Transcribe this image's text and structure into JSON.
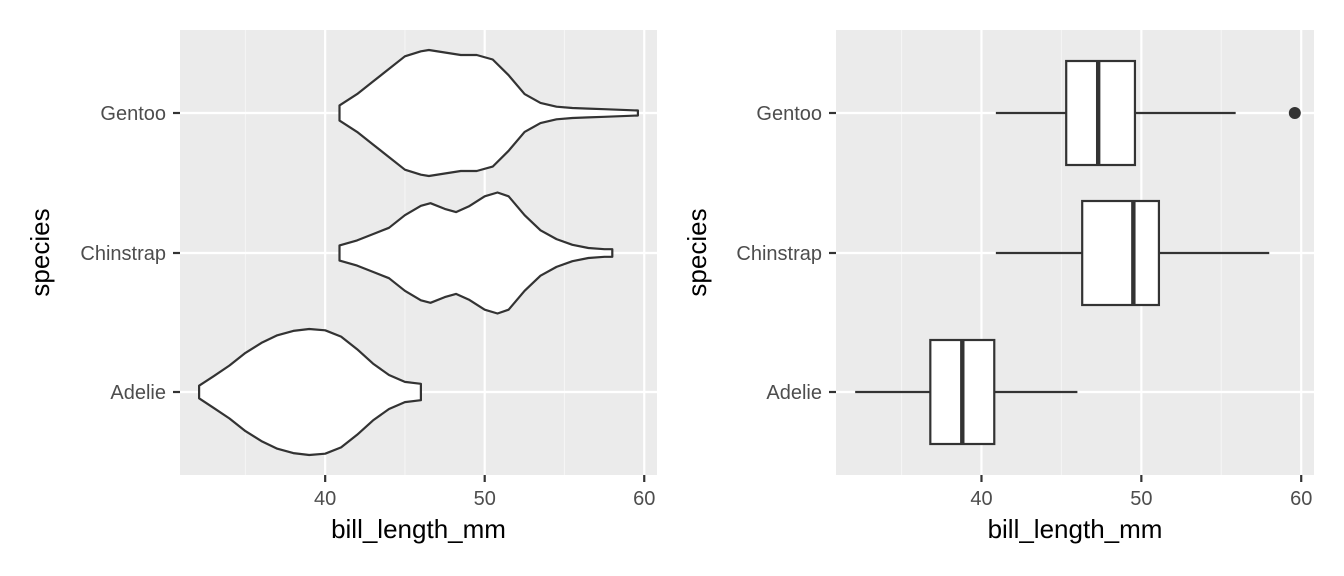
{
  "colors": {
    "panel_background": "#EBEBEB",
    "grid_major": "#FFFFFF",
    "grid_minor": "#F5F5F5",
    "outline": "#333333",
    "fill": "#FFFFFF",
    "tick_text": "#4D4D4D",
    "axis_title": "#000000"
  },
  "chart_data": [
    {
      "type": "violin",
      "orientation": "horizontal",
      "title": "",
      "xlabel": "bill_length_mm",
      "ylabel": "species",
      "xlim": [
        30.9,
        60.8
      ],
      "x_ticks": [
        40,
        50,
        60
      ],
      "x_minor_ticks": [
        35,
        45,
        55
      ],
      "categories": [
        "Adelie",
        "Chinstrap",
        "Gentoo"
      ],
      "grid": true,
      "violins": [
        {
          "name": "Adelie",
          "range": [
            32.1,
            46.0
          ],
          "profile": [
            [
              32.1,
              0.1
            ],
            [
              33,
              0.25
            ],
            [
              34,
              0.42
            ],
            [
              35,
              0.62
            ],
            [
              36,
              0.78
            ],
            [
              37,
              0.9
            ],
            [
              38,
              0.97
            ],
            [
              39,
              1.0
            ],
            [
              40,
              0.98
            ],
            [
              41,
              0.88
            ],
            [
              42,
              0.68
            ],
            [
              43,
              0.45
            ],
            [
              44,
              0.27
            ],
            [
              45,
              0.16
            ],
            [
              46,
              0.13
            ]
          ]
        },
        {
          "name": "Chinstrap",
          "range": [
            40.9,
            58.0
          ],
          "profile": [
            [
              40.9,
              0.12
            ],
            [
              42,
              0.2
            ],
            [
              43,
              0.3
            ],
            [
              44,
              0.4
            ],
            [
              45,
              0.6
            ],
            [
              46,
              0.75
            ],
            [
              46.6,
              0.79
            ],
            [
              47.5,
              0.7
            ],
            [
              48.2,
              0.65
            ],
            [
              49,
              0.74
            ],
            [
              50,
              0.9
            ],
            [
              50.8,
              0.96
            ],
            [
              51.5,
              0.9
            ],
            [
              52.5,
              0.6
            ],
            [
              53.5,
              0.36
            ],
            [
              54.5,
              0.22
            ],
            [
              55.5,
              0.13
            ],
            [
              56.5,
              0.08
            ],
            [
              57.5,
              0.06
            ],
            [
              58,
              0.06
            ]
          ]
        },
        {
          "name": "Gentoo",
          "range": [
            40.9,
            59.6
          ],
          "profile": [
            [
              40.9,
              0.12
            ],
            [
              42,
              0.3
            ],
            [
              43,
              0.5
            ],
            [
              44,
              0.7
            ],
            [
              45,
              0.9
            ],
            [
              46,
              0.98
            ],
            [
              46.5,
              1.0
            ],
            [
              47.5,
              0.96
            ],
            [
              48.5,
              0.92
            ],
            [
              49.5,
              0.92
            ],
            [
              50.5,
              0.85
            ],
            [
              51.5,
              0.6
            ],
            [
              52.5,
              0.3
            ],
            [
              53.5,
              0.16
            ],
            [
              54.5,
              0.1
            ],
            [
              55.5,
              0.08
            ],
            [
              56.5,
              0.07
            ],
            [
              57.5,
              0.06
            ],
            [
              58.5,
              0.05
            ],
            [
              59.6,
              0.04
            ]
          ]
        }
      ]
    },
    {
      "type": "boxplot",
      "orientation": "horizontal",
      "title": "",
      "xlabel": "bill_length_mm",
      "ylabel": "species",
      "xlim": [
        30.9,
        60.8
      ],
      "x_ticks": [
        40,
        50,
        60
      ],
      "x_minor_ticks": [
        35,
        45,
        55
      ],
      "categories": [
        "Adelie",
        "Chinstrap",
        "Gentoo"
      ],
      "grid": true,
      "boxes": [
        {
          "name": "Adelie",
          "whisker_low": 32.1,
          "q1": 36.8,
          "median": 38.8,
          "q3": 40.8,
          "whisker_high": 46.0,
          "outliers": []
        },
        {
          "name": "Chinstrap",
          "whisker_low": 40.9,
          "q1": 46.3,
          "median": 49.5,
          "q3": 51.1,
          "whisker_high": 58.0,
          "outliers": []
        },
        {
          "name": "Gentoo",
          "whisker_low": 40.9,
          "q1": 45.3,
          "median": 47.3,
          "q3": 49.6,
          "whisker_high": 55.9,
          "outliers": [
            59.6
          ]
        }
      ]
    }
  ]
}
